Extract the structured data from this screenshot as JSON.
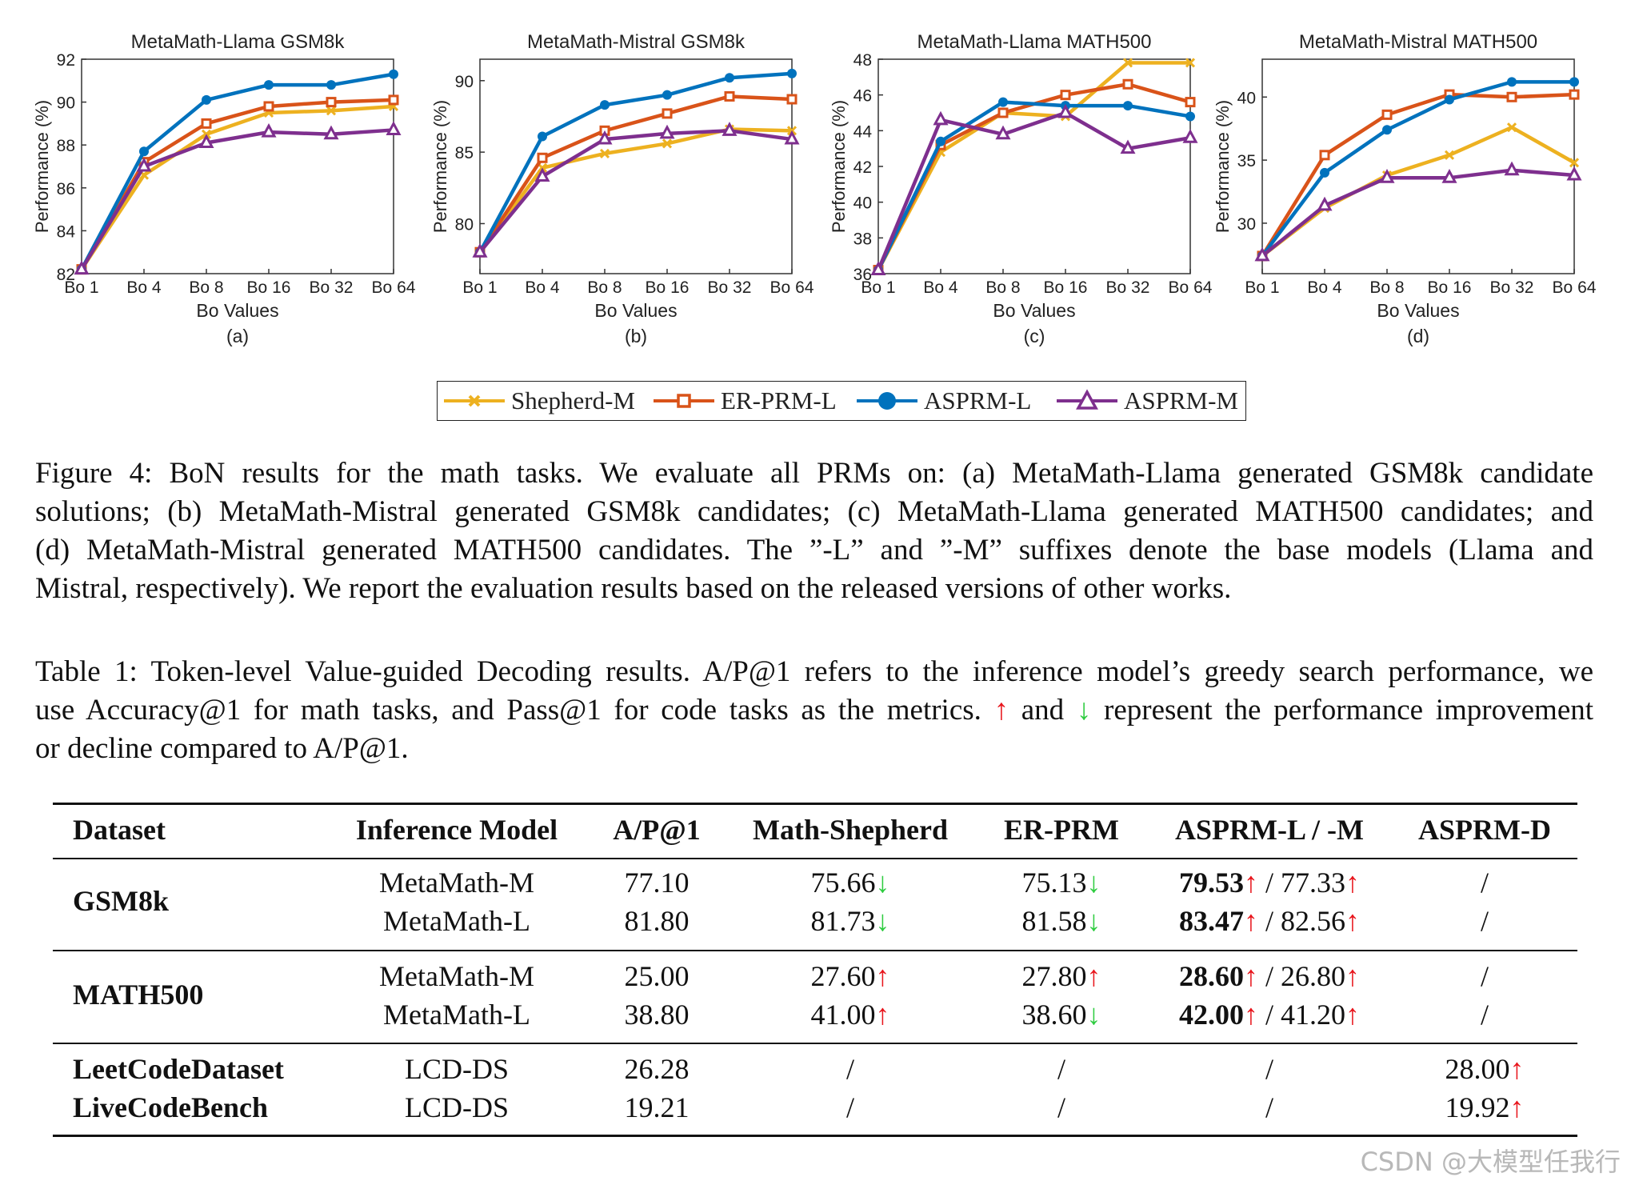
{
  "chart_data": [
    {
      "type": "line",
      "title": "MetaMath-Llama GSM8k",
      "panel_label": "(a)",
      "xlabel": "Bo Values",
      "ylabel": "Performance (%)",
      "categories": [
        "Bo 1",
        "Bo 4",
        "Bo 8",
        "Bo 16",
        "Bo 32",
        "Bo 64"
      ],
      "ylim": [
        82,
        92
      ],
      "yticks": [
        82,
        84,
        86,
        88,
        90,
        92
      ],
      "series": [
        {
          "name": "Shepherd-M",
          "values": [
            82.2,
            86.6,
            88.5,
            89.5,
            89.6,
            89.8
          ]
        },
        {
          "name": "ER-PRM-L",
          "values": [
            82.2,
            87.2,
            89.0,
            89.8,
            90.0,
            90.1
          ]
        },
        {
          "name": "ASPRM-L",
          "values": [
            82.2,
            87.7,
            90.1,
            90.8,
            90.8,
            91.3
          ]
        },
        {
          "name": "ASPRM-M",
          "values": [
            82.2,
            87.0,
            88.1,
            88.6,
            88.5,
            88.7
          ]
        }
      ]
    },
    {
      "type": "line",
      "title": "MetaMath-Mistral GSM8k",
      "panel_label": "(b)",
      "xlabel": "Bo Values",
      "ylabel": "Performance (%)",
      "categories": [
        "Bo 1",
        "Bo 4",
        "Bo 8",
        "Bo 16",
        "Bo 32",
        "Bo 64"
      ],
      "ylim": [
        76.5,
        91.5
      ],
      "yticks": [
        80,
        85,
        90
      ],
      "series": [
        {
          "name": "Shepherd-M",
          "values": [
            78.0,
            83.9,
            84.9,
            85.6,
            86.6,
            86.5
          ]
        },
        {
          "name": "ER-PRM-L",
          "values": [
            78.0,
            84.6,
            86.5,
            87.7,
            88.9,
            88.7
          ]
        },
        {
          "name": "ASPRM-L",
          "values": [
            78.0,
            86.1,
            88.3,
            89.0,
            90.2,
            90.5
          ]
        },
        {
          "name": "ASPRM-M",
          "values": [
            78.0,
            83.3,
            85.9,
            86.3,
            86.5,
            85.9
          ]
        }
      ]
    },
    {
      "type": "line",
      "title": "MetaMath-Llama MATH500",
      "panel_label": "(c)",
      "xlabel": "Bo Values",
      "ylabel": "Performance (%)",
      "categories": [
        "Bo 1",
        "Bo 4",
        "Bo 8",
        "Bo 16",
        "Bo 32",
        "Bo 64"
      ],
      "ylim": [
        36,
        48
      ],
      "yticks": [
        36,
        38,
        40,
        42,
        44,
        46,
        48
      ],
      "series": [
        {
          "name": "Shepherd-M",
          "values": [
            36.2,
            42.8,
            45.0,
            44.8,
            47.8,
            47.8
          ]
        },
        {
          "name": "ER-PRM-L",
          "values": [
            36.2,
            43.2,
            45.0,
            46.0,
            46.6,
            45.6
          ]
        },
        {
          "name": "ASPRM-L",
          "values": [
            36.2,
            43.4,
            45.6,
            45.4,
            45.4,
            44.8
          ]
        },
        {
          "name": "ASPRM-M",
          "values": [
            36.2,
            44.6,
            43.8,
            45.0,
            43.0,
            43.6
          ]
        }
      ]
    },
    {
      "type": "line",
      "title": "MetaMath-Mistral MATH500",
      "panel_label": "(d)",
      "xlabel": "Bo Values",
      "ylabel": "Performance (%)",
      "categories": [
        "Bo 1",
        "Bo 4",
        "Bo 8",
        "Bo 16",
        "Bo 32",
        "Bo 64"
      ],
      "ylim": [
        26,
        43
      ],
      "yticks": [
        30,
        35,
        40
      ],
      "series": [
        {
          "name": "Shepherd-M",
          "values": [
            27.4,
            31.2,
            33.8,
            35.4,
            37.6,
            34.8
          ]
        },
        {
          "name": "ER-PRM-L",
          "values": [
            27.4,
            35.4,
            38.6,
            40.2,
            40.0,
            40.2
          ]
        },
        {
          "name": "ASPRM-L",
          "values": [
            27.4,
            34.0,
            37.4,
            39.8,
            41.2,
            41.2
          ]
        },
        {
          "name": "ASPRM-M",
          "values": [
            27.4,
            31.4,
            33.6,
            33.6,
            34.2,
            33.8
          ]
        }
      ]
    }
  ],
  "legend": [
    {
      "name": "Shepherd-M",
      "color": "#EDB120",
      "marker": "x"
    },
    {
      "name": "ER-PRM-L",
      "color": "#D95319",
      "marker": "square"
    },
    {
      "name": "ASPRM-L",
      "color": "#0072BD",
      "marker": "circle"
    },
    {
      "name": "ASPRM-M",
      "color": "#7E2F8E",
      "marker": "triangle"
    }
  ],
  "figure_caption": [
    "Figure 4: BoN results for the math tasks. We evaluate all PRMs on: (a) MetaMath-Llama generated GSM8k candidate",
    "solutions; (b) MetaMath-Mistral generated GSM8k candidates; (c) MetaMath-Llama generated MATH500 candidates; and",
    "(d) MetaMath-Mistral generated MATH500 candidates. The ”-L” and ”-M” suffixes denote the base models (Llama and",
    "Mistral, respectively). We report the evaluation results based on the released versions of other works."
  ],
  "table_caption": {
    "line1": "Table 1: Token-level Value-guided Decoding results. A/P@1 refers to the inference model’s greedy search performance, we",
    "line2_pre": "use Accuracy@1 for math tasks, and Pass@1 for code tasks as the metrics.",
    "up_arrow": "↑",
    "and": "and",
    "down_arrow": "↓",
    "line2_post": "represent the performance improvement",
    "line3": "or decline compared to A/P@1."
  },
  "table": {
    "headers": [
      "Dataset",
      "Inference Model",
      "A/P@1",
      "Math-Shepherd",
      "ER-PRM",
      "ASPRM-L / -M",
      "ASPRM-D"
    ],
    "groups": [
      {
        "dataset": "GSM8k",
        "rows": [
          {
            "model": "MetaMath-M",
            "ap1": "77.10",
            "ms": "75.66",
            "ms_dir": "↓",
            "er": "75.13",
            "er_dir": "↓",
            "aspl": "79.53",
            "aspl_dir": "↑",
            "sep": " / ",
            "aspm": "77.33",
            "aspm_dir": "↑",
            "aspd": "/"
          },
          {
            "model": "MetaMath-L",
            "ap1": "81.80",
            "ms": "81.73",
            "ms_dir": "↓",
            "er": "81.58",
            "er_dir": "↓",
            "aspl": "83.47",
            "aspl_dir": "↑",
            "sep": " / ",
            "aspm": "82.56",
            "aspm_dir": "↑",
            "aspd": "/"
          }
        ]
      },
      {
        "dataset": "MATH500",
        "rows": [
          {
            "model": "MetaMath-M",
            "ap1": "25.00",
            "ms": "27.60",
            "ms_dir": "↑",
            "er": "27.80",
            "er_dir": "↑",
            "aspl": "28.60",
            "aspl_dir": "↑",
            "sep": " / ",
            "aspm": "26.80",
            "aspm_dir": "↑",
            "aspd": "/"
          },
          {
            "model": "MetaMath-L",
            "ap1": "38.80",
            "ms": "41.00",
            "ms_dir": "↑",
            "er": "38.60",
            "er_dir": "↓",
            "aspl": "42.00",
            "aspl_dir": "↑",
            "sep": " / ",
            "aspm": "41.20",
            "aspm_dir": "↑",
            "aspd": "/"
          }
        ]
      }
    ],
    "code_rows": [
      {
        "dataset": "LeetCodeDataset",
        "model": "LCD-DS",
        "ap1": "26.28",
        "ms": "/",
        "er": "/",
        "asp": "/",
        "aspd": "28.00",
        "aspd_dir": "↑"
      },
      {
        "dataset": "LiveCodeBench",
        "model": "LCD-DS",
        "ap1": "19.21",
        "ms": "/",
        "er": "/",
        "asp": "/",
        "aspd": "19.92",
        "aspd_dir": "↑"
      }
    ]
  },
  "watermark": "CSDN @大模型任我行"
}
